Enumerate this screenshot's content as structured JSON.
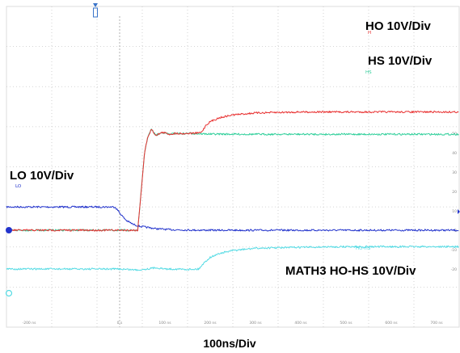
{
  "chart_data": {
    "type": "line",
    "title": "",
    "xlabel": "100ns/Div",
    "ylabel": "",
    "x_ticks": [
      "-200 ns",
      "0 s",
      "100 ns",
      "200 ns",
      "300 ns",
      "400 ns",
      "500 ns",
      "600 ns",
      "700 ns"
    ],
    "right_ticks": [
      "50",
      "40",
      "30",
      "20",
      "10",
      "0",
      "-10",
      "-20"
    ],
    "xlim": [
      -250,
      750
    ],
    "grid": true,
    "legend": "inline labels on traces",
    "series": [
      {
        "name": "HO 10V/Div",
        "marker_label": "H",
        "color": "#e83030",
        "x": [
          -250,
          40,
          55,
          62,
          70,
          80,
          95,
          110,
          125,
          140,
          155,
          165,
          175,
          180,
          185,
          190,
          200,
          220,
          250,
          300,
          400,
          500,
          600,
          750
        ],
        "y": [
          0,
          0,
          40,
          48,
          52,
          49,
          50.5,
          49.5,
          50,
          49.8,
          50,
          50,
          50.2,
          50.5,
          52,
          54,
          56,
          58,
          59.5,
          60.5,
          61,
          61,
          61,
          61
        ]
      },
      {
        "name": "HS 10V/Div",
        "marker_label": "HS",
        "color": "#2fcf9a",
        "x": [
          -250,
          40,
          55,
          62,
          70,
          80,
          95,
          110,
          125,
          140,
          155,
          170,
          200,
          300,
          400,
          500,
          600,
          750
        ],
        "y": [
          0,
          0,
          40,
          48,
          52,
          49,
          50.5,
          49.5,
          50,
          49.8,
          50,
          49.8,
          49.6,
          49.5,
          49.5,
          49.5,
          49.5,
          49.5
        ]
      },
      {
        "name": "LO 10V/Div",
        "marker_label": "LO",
        "color": "#2233cc",
        "x": [
          -250,
          -10,
          -5,
          5,
          15,
          30,
          45,
          60,
          80,
          110,
          150,
          200,
          300,
          400,
          500,
          600,
          750
        ],
        "y": [
          12,
          12,
          10.5,
          7.5,
          5,
          3,
          2,
          1.5,
          0.8,
          0.3,
          0.1,
          0,
          0,
          0,
          0,
          0,
          0
        ]
      },
      {
        "name": "MATH3 HO-HS 10V/Div",
        "marker_label": "HO-HS",
        "color": "#55dbe4",
        "x": [
          -250,
          0,
          40,
          60,
          80,
          100,
          120,
          150,
          175,
          180,
          190,
          200,
          220,
          250,
          300,
          400,
          500,
          600,
          750
        ],
        "y": [
          -20,
          -20,
          -20.5,
          -20,
          -19.3,
          -20,
          -20,
          -20.2,
          -20,
          -18.5,
          -16,
          -14,
          -12,
          -10.5,
          -9.3,
          -8.8,
          -8.5,
          -8.5,
          -8.5
        ]
      }
    ]
  }
}
